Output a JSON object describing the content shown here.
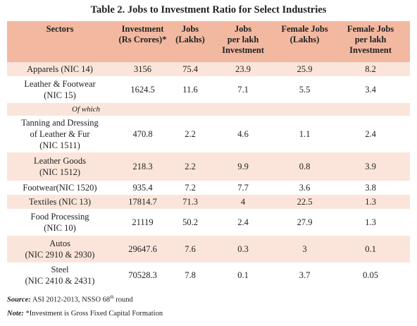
{
  "title": "Table 2.  Jobs to Investment Ratio for Select Industries",
  "table": {
    "header": [
      [
        "Sectors"
      ],
      [
        "Investment",
        "(Rs Crores)*"
      ],
      [
        "Jobs",
        "(Lakhs)"
      ],
      [
        "Jobs",
        "per lakh",
        "Investment"
      ],
      [
        "Female Jobs",
        "(Lakhs)"
      ],
      [
        "Female Jobs",
        "per lakh",
        "Investment"
      ]
    ],
    "rows": [
      [
        [
          "Apparels (NIC 14)"
        ],
        3156,
        75.4,
        23.9,
        25.9,
        8.2
      ],
      [
        [
          "Leather & Footwear",
          "(NIC 15)"
        ],
        1624.5,
        11.6,
        7.1,
        5.5,
        3.4
      ],
      [
        [
          "Of which"
        ]
      ],
      [
        [
          "Tanning and Dressing",
          "of Leather & Fur",
          "(NIC 1511)"
        ],
        470.8,
        2.2,
        4.6,
        1.1,
        2.4
      ],
      [
        [
          "Leather Goods",
          "(NIC 1512)"
        ],
        218.3,
        2.2,
        9.9,
        0.8,
        3.9
      ],
      [
        [
          "Footwear(NIC 1520)"
        ],
        935.4,
        7.2,
        7.7,
        3.6,
        3.8
      ],
      [
        [
          "Textiles (NIC 13)"
        ],
        17814.7,
        71.3,
        4,
        22.5,
        1.3
      ],
      [
        [
          "Food Processing",
          "(NIC 10)"
        ],
        21119,
        50.2,
        2.4,
        27.9,
        1.3
      ],
      [
        [
          "Autos",
          "(NIC 2910 & 2930)"
        ],
        29647.6,
        7.6,
        0.3,
        3,
        0.1
      ],
      [
        [
          "Steel",
          "(NIC 2410 & 2431)"
        ],
        70528.3,
        7.8,
        0.1,
        3.7,
        0.05
      ]
    ]
  },
  "notes": [
    {
      "label": "Source:",
      "text": "ASI 2012-2013, NSSO 68",
      "sup": "th",
      "rest": " round"
    },
    {
      "label": "Note:",
      "text": "*Investment is Gross Fixed Capital Formation"
    }
  ]
}
